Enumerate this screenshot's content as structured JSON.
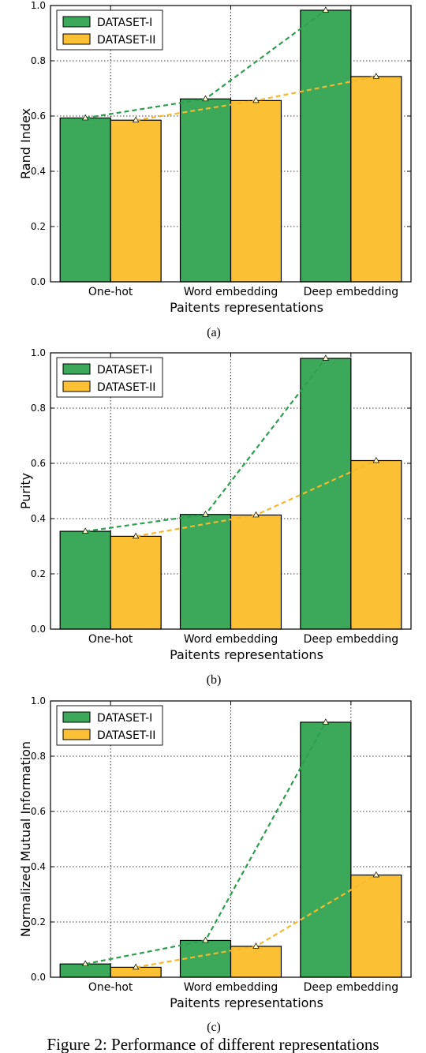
{
  "legend": {
    "series_1": "DATASET-I",
    "series_2": "DATASET-II"
  },
  "colors": {
    "dataset_1": "#3ba85a",
    "dataset_2": "#fbc034",
    "line_1": "#2e9e4f",
    "line_2": "#f5b82e"
  },
  "caption": "Figure 2: Performance of different representations",
  "chart_data": [
    {
      "type": "bar",
      "panel_label": "(a)",
      "title": "",
      "xlabel": "Paitents representations",
      "ylabel": "Rand Index",
      "categories": [
        "One-hot",
        "Word embedding",
        "Deep embedding"
      ],
      "series": [
        {
          "name": "DATASET-I",
          "values": [
            0.593,
            0.662,
            0.983
          ]
        },
        {
          "name": "DATASET-II",
          "values": [
            0.585,
            0.656,
            0.743
          ]
        }
      ],
      "ylim": [
        0.0,
        1.0
      ],
      "yticks": [
        "0.0",
        "0.2",
        "0.4",
        "0.6",
        "0.8",
        "1.0"
      ],
      "grid": true,
      "legend_position": "top-left",
      "trend_lines": "dashed"
    },
    {
      "type": "bar",
      "panel_label": "(b)",
      "title": "",
      "xlabel": "Paitents representations",
      "ylabel": "Purity",
      "categories": [
        "One-hot",
        "Word embedding",
        "Deep embedding"
      ],
      "series": [
        {
          "name": "DATASET-I",
          "values": [
            0.354,
            0.415,
            0.98
          ]
        },
        {
          "name": "DATASET-II",
          "values": [
            0.336,
            0.413,
            0.61
          ]
        }
      ],
      "ylim": [
        0.0,
        1.0
      ],
      "yticks": [
        "0.0",
        "0.2",
        "0.4",
        "0.6",
        "0.8",
        "1.0"
      ],
      "grid": true,
      "legend_position": "top-left",
      "trend_lines": "dashed"
    },
    {
      "type": "bar",
      "panel_label": "(c)",
      "title": "",
      "xlabel": "Paitents representations",
      "ylabel": "Normalized Mutual Information",
      "categories": [
        "One-hot",
        "Word embedding",
        "Deep embedding"
      ],
      "series": [
        {
          "name": "DATASET-I",
          "values": [
            0.048,
            0.133,
            0.923
          ]
        },
        {
          "name": "DATASET-II",
          "values": [
            0.036,
            0.112,
            0.37
          ]
        }
      ],
      "ylim": [
        0.0,
        1.0
      ],
      "yticks": [
        "0.0",
        "0.2",
        "0.4",
        "0.6",
        "0.8",
        "1.0"
      ],
      "grid": true,
      "legend_position": "top-left",
      "trend_lines": "dashed"
    }
  ]
}
